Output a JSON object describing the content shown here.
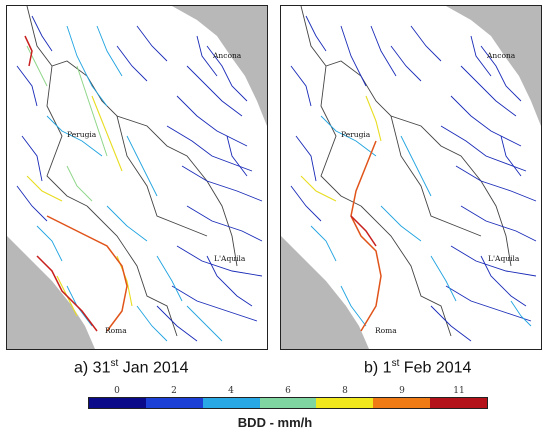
{
  "panels": [
    {
      "id": "a",
      "caption_main": "a) 31",
      "caption_sup": "st",
      "caption_rest": " Jan 2014"
    },
    {
      "id": "b",
      "caption_main": "b) 1",
      "caption_sup": "st",
      "caption_rest": " Feb 2014"
    }
  ],
  "cities": {
    "ancona": "Ancona",
    "perugia": "Perugia",
    "laquila": "L'Aquila",
    "roma": "Roma"
  },
  "legend": {
    "title": "BDD - mm/h",
    "ticks": [
      "0",
      "2",
      "4",
      "6",
      "8",
      "9",
      "11"
    ],
    "colors": [
      "#0b0b8a",
      "#1c3fd6",
      "#29a8e6",
      "#7fd6a0",
      "#f2e81e",
      "#f07a14",
      "#b3121b"
    ]
  },
  "colors": {
    "sea": "#b8b8b8",
    "border": "#444444"
  }
}
